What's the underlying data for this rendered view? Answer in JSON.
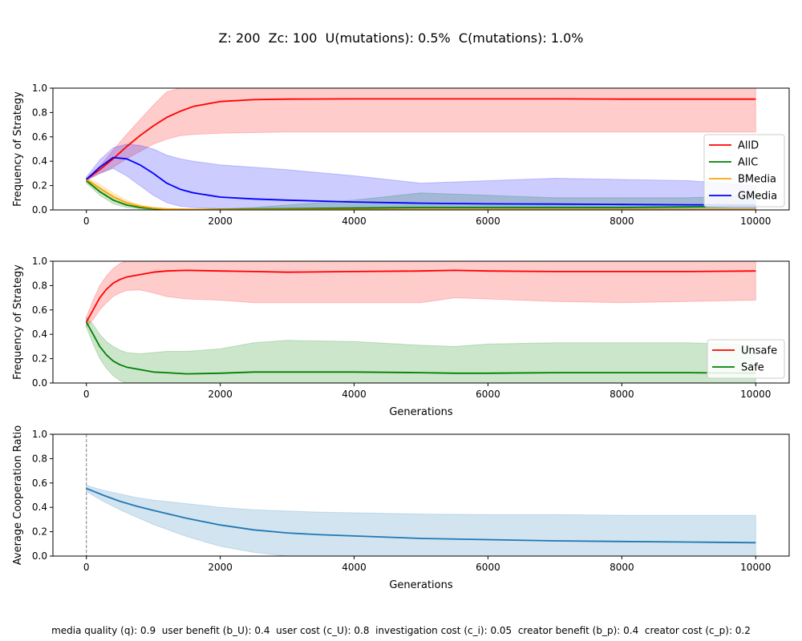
{
  "figure": {
    "title": "Z: 200  Zc: 100  U(mutations): 0.5%  C(mutations): 1.0%",
    "footer": "media quality (q): 0.9  user benefit (b_U): 0.4  user cost (c_U): 0.8  investigation cost (c_i): 0.05  creator benefit (b_p): 0.4  creator cost (c_p): 0.2"
  },
  "chart_data": [
    {
      "type": "line",
      "ylabel": "Frequency of Strategy",
      "xlabel": "",
      "xlim": [
        -500,
        10500
      ],
      "ylim": [
        0,
        1
      ],
      "xticks": [
        0,
        2000,
        4000,
        6000,
        8000,
        10000
      ],
      "yticks": [
        0.0,
        0.2,
        0.4,
        0.6,
        0.8,
        1.0
      ],
      "legend_position": "center-right",
      "x": [
        0,
        200,
        400,
        600,
        800,
        1000,
        1200,
        1400,
        1600,
        2000,
        2500,
        3000,
        4000,
        5000,
        6000,
        7000,
        8000,
        9000,
        10000
      ],
      "series": [
        {
          "name": "AllD",
          "color": "#ff0000",
          "values": [
            0.25,
            0.33,
            0.42,
            0.52,
            0.61,
            0.69,
            0.76,
            0.81,
            0.85,
            0.89,
            0.905,
            0.91,
            0.912,
            0.912,
            0.912,
            0.912,
            0.91,
            0.91,
            0.91
          ],
          "lower": [
            0.25,
            0.3,
            0.35,
            0.42,
            0.48,
            0.54,
            0.58,
            0.61,
            0.62,
            0.63,
            0.635,
            0.64,
            0.64,
            0.64,
            0.64,
            0.64,
            0.64,
            0.64,
            0.64
          ],
          "upper": [
            0.26,
            0.36,
            0.49,
            0.62,
            0.74,
            0.86,
            0.97,
            1.0,
            1.0,
            1.0,
            1.0,
            1.0,
            1.0,
            1.0,
            1.0,
            1.0,
            1.0,
            1.0,
            1.0
          ]
        },
        {
          "name": "AllC",
          "color": "#008000",
          "values": [
            0.24,
            0.15,
            0.08,
            0.04,
            0.02,
            0.01,
            0.005,
            0.003,
            0.003,
            0.005,
            0.008,
            0.01,
            0.015,
            0.02,
            0.02,
            0.02,
            0.02,
            0.025,
            0.03
          ],
          "lower": [
            0.22,
            0.12,
            0.05,
            0.02,
            0.01,
            0.0,
            0.0,
            0.0,
            0.0,
            0.0,
            0.0,
            0.0,
            0.0,
            0.0,
            0.0,
            0.0,
            0.0,
            0.0,
            0.0
          ],
          "upper": [
            0.26,
            0.18,
            0.11,
            0.06,
            0.03,
            0.02,
            0.01,
            0.01,
            0.01,
            0.01,
            0.02,
            0.04,
            0.08,
            0.14,
            0.12,
            0.1,
            0.1,
            0.1,
            0.12
          ]
        },
        {
          "name": "BMedia",
          "color": "#ffa500",
          "values": [
            0.25,
            0.18,
            0.11,
            0.06,
            0.03,
            0.015,
            0.008,
            0.005,
            0.004,
            0.003,
            0.003,
            0.003,
            0.003,
            0.003,
            0.003,
            0.003,
            0.003,
            0.003,
            0.003
          ],
          "lower": [
            0.23,
            0.15,
            0.08,
            0.04,
            0.02,
            0.0,
            0.0,
            0.0,
            0.0,
            0.0,
            0.0,
            0.0,
            0.0,
            0.0,
            0.0,
            0.0,
            0.0,
            0.0,
            0.0
          ],
          "upper": [
            0.27,
            0.21,
            0.14,
            0.08,
            0.04,
            0.02,
            0.01,
            0.01,
            0.01,
            0.01,
            0.01,
            0.01,
            0.01,
            0.01,
            0.01,
            0.01,
            0.01,
            0.01,
            0.01
          ]
        },
        {
          "name": "GMedia",
          "color": "#0000ff",
          "values": [
            0.25,
            0.35,
            0.43,
            0.42,
            0.37,
            0.3,
            0.22,
            0.17,
            0.14,
            0.105,
            0.09,
            0.08,
            0.065,
            0.055,
            0.05,
            0.048,
            0.045,
            0.042,
            0.04
          ],
          "lower": [
            0.24,
            0.3,
            0.34,
            0.28,
            0.2,
            0.12,
            0.06,
            0.03,
            0.02,
            0.01,
            0.0,
            0.0,
            0.0,
            0.0,
            0.0,
            0.0,
            0.0,
            0.0,
            0.0
          ],
          "upper": [
            0.27,
            0.41,
            0.51,
            0.54,
            0.53,
            0.5,
            0.45,
            0.42,
            0.4,
            0.37,
            0.35,
            0.33,
            0.28,
            0.22,
            0.24,
            0.26,
            0.25,
            0.24,
            0.2
          ]
        }
      ]
    },
    {
      "type": "line",
      "ylabel": "Frequency of Strategy",
      "xlabel": "Generations",
      "xlim": [
        -500,
        10500
      ],
      "ylim": [
        0,
        1
      ],
      "xticks": [
        0,
        2000,
        4000,
        6000,
        8000,
        10000
      ],
      "yticks": [
        0.0,
        0.2,
        0.4,
        0.6,
        0.8,
        1.0
      ],
      "legend_position": "lower-right",
      "x": [
        0,
        100,
        200,
        300,
        400,
        500,
        600,
        800,
        1000,
        1200,
        1500,
        2000,
        2500,
        3000,
        4000,
        5000,
        5500,
        6000,
        7000,
        8000,
        9000,
        10000
      ],
      "series": [
        {
          "name": "Unsafe",
          "color": "#ff0000",
          "values": [
            0.5,
            0.6,
            0.7,
            0.77,
            0.82,
            0.85,
            0.87,
            0.89,
            0.91,
            0.92,
            0.925,
            0.92,
            0.915,
            0.91,
            0.915,
            0.92,
            0.925,
            0.92,
            0.915,
            0.915,
            0.915,
            0.92
          ],
          "lower": [
            0.46,
            0.52,
            0.6,
            0.66,
            0.71,
            0.74,
            0.76,
            0.765,
            0.74,
            0.71,
            0.69,
            0.68,
            0.66,
            0.66,
            0.66,
            0.66,
            0.7,
            0.69,
            0.67,
            0.66,
            0.67,
            0.68
          ],
          "upper": [
            0.54,
            0.68,
            0.8,
            0.88,
            0.94,
            0.98,
            1.0,
            1.0,
            1.0,
            1.0,
            1.0,
            1.0,
            1.0,
            1.0,
            1.0,
            1.0,
            1.0,
            1.0,
            1.0,
            1.0,
            1.0,
            1.0
          ]
        },
        {
          "name": "Safe",
          "color": "#008000",
          "values": [
            0.5,
            0.4,
            0.3,
            0.23,
            0.18,
            0.15,
            0.13,
            0.11,
            0.09,
            0.085,
            0.075,
            0.08,
            0.09,
            0.09,
            0.09,
            0.085,
            0.08,
            0.08,
            0.085,
            0.085,
            0.085,
            0.08
          ],
          "lower": [
            0.46,
            0.32,
            0.2,
            0.12,
            0.06,
            0.02,
            0.0,
            0.0,
            0.0,
            0.0,
            0.0,
            0.0,
            0.0,
            0.0,
            0.0,
            0.0,
            0.0,
            0.0,
            0.0,
            0.0,
            0.0,
            0.0
          ],
          "upper": [
            0.54,
            0.48,
            0.4,
            0.34,
            0.3,
            0.27,
            0.25,
            0.24,
            0.25,
            0.26,
            0.26,
            0.28,
            0.33,
            0.35,
            0.34,
            0.31,
            0.3,
            0.32,
            0.33,
            0.33,
            0.33,
            0.31
          ]
        }
      ]
    },
    {
      "type": "line",
      "ylabel": "Average Cooperation Ratio",
      "xlabel": "Generations",
      "xlim": [
        -500,
        10500
      ],
      "ylim": [
        0,
        1
      ],
      "xticks": [
        0,
        2000,
        4000,
        6000,
        8000,
        10000
      ],
      "yticks": [
        0.0,
        0.2,
        0.4,
        0.6,
        0.8,
        1.0
      ],
      "vline_x": 0,
      "x": [
        0,
        250,
        500,
        750,
        1000,
        1500,
        2000,
        2500,
        3000,
        3500,
        4000,
        5000,
        6000,
        7000,
        8000,
        9000,
        10000
      ],
      "series": [
        {
          "name": "",
          "color": "#1f77b4",
          "values": [
            0.555,
            0.5,
            0.45,
            0.41,
            0.375,
            0.31,
            0.255,
            0.215,
            0.19,
            0.175,
            0.165,
            0.145,
            0.135,
            0.125,
            0.12,
            0.115,
            0.11
          ],
          "lower": [
            0.53,
            0.45,
            0.38,
            0.32,
            0.26,
            0.16,
            0.08,
            0.03,
            0.0,
            0.0,
            0.0,
            0.0,
            0.0,
            0.0,
            0.0,
            0.0,
            0.0
          ],
          "upper": [
            0.58,
            0.54,
            0.51,
            0.48,
            0.46,
            0.43,
            0.4,
            0.38,
            0.37,
            0.36,
            0.355,
            0.345,
            0.34,
            0.34,
            0.335,
            0.335,
            0.335
          ]
        }
      ]
    }
  ]
}
